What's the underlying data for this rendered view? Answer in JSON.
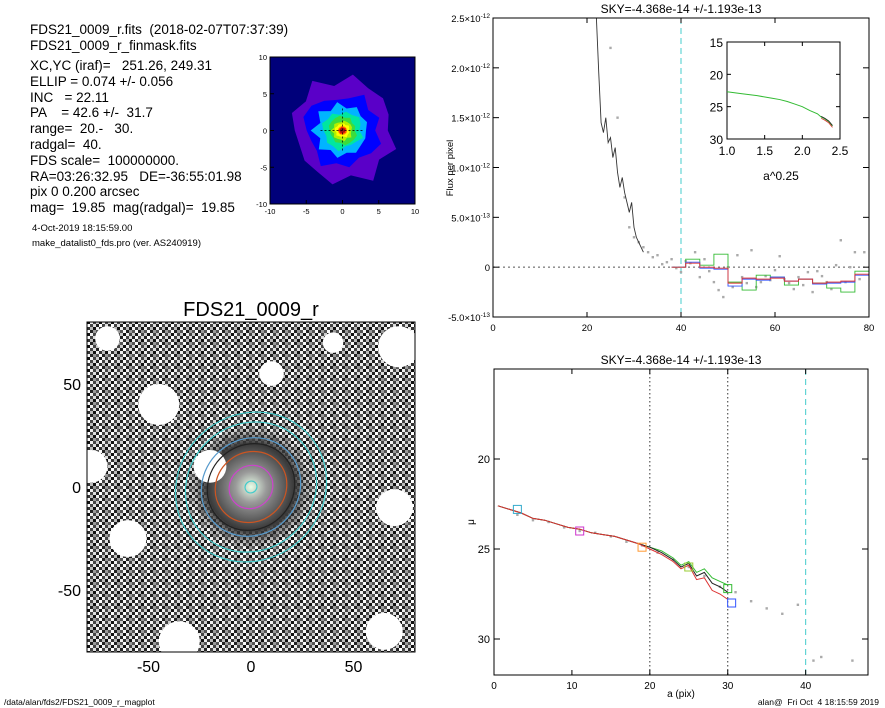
{
  "info": {
    "file_line": "FDS21_0009_r.fits  (2018-02-07T07:37:39)",
    "mask_line": "FDS21_0009_r_finmask.fits",
    "lines": [
      "XC,YC (iraf)=   251.26, 249.31",
      "ELLIP = 0.074 +/- 0.056",
      "INC   = 22.11",
      "PA    = 42.6 +/-  31.7",
      "range=  20.-   30.",
      "radgal=  40.",
      "FDS scale=  100000000.",
      "RA=03:26:32.95   DE=-36:55:01.98",
      "pix 0 0.200 arcsec",
      "mag=  19.85  mag(radgal)=  19.85"
    ],
    "date_line": "4-Oct-2019 18:15:59.00",
    "prog_line": "make_datalist0_fds.pro (ver. AS240919)"
  },
  "footer": {
    "left": "/data/alan/fds2/FDS21_0009_r_magplot",
    "right": "alan@  Fri Oct  4 18:15:59 2019"
  },
  "chart_data": [
    {
      "type": "heatmap",
      "title": "",
      "xlim": [
        -10,
        10
      ],
      "ylim": [
        -10,
        10
      ],
      "x_ticks": [
        "-10",
        "-5",
        "0",
        "5",
        "10"
      ],
      "y_ticks": [
        "10",
        "5",
        "0",
        "-5",
        "-10"
      ],
      "contour_colors": [
        "#00007a",
        "#5a00c8",
        "#0000ff",
        "#00b4ff",
        "#00e6a0",
        "#3cdc3c",
        "#b4f000",
        "#ffff00",
        "#ff9600",
        "#ff2800",
        "#a01414"
      ],
      "levels": [
        0,
        1,
        2,
        3,
        4,
        5,
        6,
        7,
        8,
        9,
        10
      ]
    },
    {
      "type": "line",
      "title": "SKY=-4.368e-14 +/-1.193e-13",
      "xlabel": "",
      "ylabel": "Flux per pixel",
      "xlim": [
        0,
        80
      ],
      "ylim": [
        -5e-13,
        2.5e-12
      ],
      "x_ticks": [
        "0",
        "20",
        "40",
        "60",
        "80"
      ],
      "y_ticks": [
        {
          "v": 2.5e-12,
          "m": "2.5",
          "e": "-12"
        },
        {
          "v": 2e-12,
          "m": "2.0",
          "e": "-12"
        },
        {
          "v": 1.5e-12,
          "m": "1.5",
          "e": "-12"
        },
        {
          "v": 1e-12,
          "m": "1.0",
          "e": "-12"
        },
        {
          "v": 5e-13,
          "m": "5.0",
          "e": "-13"
        },
        {
          "v": 0,
          "m": "0",
          "e": ""
        },
        {
          "v": -5e-13,
          "m": "-5.0",
          "e": "-13"
        }
      ],
      "vline_x": 40,
      "profile_x": [
        22,
        22.5,
        23,
        23.5,
        24,
        24.5,
        25,
        25.5,
        26,
        26.5,
        27,
        27.5,
        28,
        28.5,
        29,
        29.5,
        30,
        30.5,
        31,
        31.5,
        32
      ],
      "profile_y": [
        2.5e-12,
        1.95e-12,
        1.45e-12,
        1.35e-12,
        1.5e-12,
        1.25e-12,
        1.3e-12,
        1.1e-12,
        1.2e-12,
        9.5e-13,
        8e-13,
        9e-13,
        7.5e-13,
        6.5e-13,
        5.5e-13,
        6.5e-13,
        4e-13,
        3e-13,
        2.5e-13,
        2e-13,
        1.5e-13
      ],
      "scatter_x": [
        25,
        26.5,
        28,
        29,
        30,
        31,
        32,
        33,
        34,
        35,
        36,
        37,
        38,
        39,
        40,
        41,
        42,
        43,
        44,
        45,
        46,
        47,
        48,
        49,
        50,
        51,
        52,
        53,
        54,
        55,
        56,
        57,
        58,
        59,
        60,
        61,
        62,
        63,
        64,
        65,
        66,
        67,
        68,
        69,
        70,
        71,
        72,
        73,
        74,
        75,
        76,
        77,
        78,
        79
      ],
      "scatter_y": [
        2.2e-12,
        1.5e-12,
        7e-13,
        4e-13,
        3e-13,
        2.5e-13,
        2e-13,
        1.5e-13,
        1e-13,
        1.2e-13,
        3e-14,
        5e-14,
        8e-14,
        -1e-14,
        -5e-14,
        6e-14,
        4e-14,
        1.5e-13,
        -1e-13,
        8e-14,
        -4e-14,
        -1.5e-13,
        -2.3e-13,
        -3e-13,
        0,
        -2e-13,
        1.2e-13,
        -1e-13,
        -1.6e-13,
        1.7e-13,
        -2e-13,
        -1.5e-13,
        -9e-14,
        -1.3e-13,
        -3e-14,
        1.1e-13,
        -1.2e-13,
        -1.6e-13,
        -2.2e-13,
        -1e-13,
        -1.8e-13,
        -5e-14,
        -2.5e-13,
        -4e-14,
        -9e-14,
        -1.5e-13,
        -2.2e-13,
        2e-14,
        2.7e-13,
        -1.5e-13,
        0,
        1.5e-13,
        -1.2e-13,
        1.5e-13
      ],
      "steps": [
        {
          "name": "green",
          "color": "#33bb33",
          "x": [
            38,
            41,
            44,
            47,
            50,
            53,
            56,
            59,
            62,
            65,
            68,
            71,
            74,
            77,
            80
          ],
          "y": [
            0,
            8e-14,
            2e-14,
            1.3e-13,
            -1.5e-13,
            -2.3e-13,
            -8e-14,
            -1e-13,
            -1.8e-13,
            -1.2e-13,
            -1.6e-13,
            -2.1e-13,
            -2.5e-13,
            -4e-14,
            0
          ]
        },
        {
          "name": "blue",
          "color": "#3355ff",
          "x": [
            38,
            41,
            44,
            47,
            50,
            53,
            56,
            59,
            62,
            65,
            68,
            71,
            74,
            77,
            80
          ],
          "y": [
            0,
            5e-14,
            -1e-14,
            -2e-14,
            -1.9e-13,
            -1.2e-13,
            -1.3e-13,
            -1e-13,
            -1.4e-13,
            -1.2e-13,
            -1.7e-13,
            -1.6e-13,
            -1.5e-13,
            -8e-14,
            0
          ]
        },
        {
          "name": "red",
          "color": "#dd3333",
          "x": [
            38,
            41,
            44,
            47,
            50,
            53,
            56,
            59,
            62,
            65,
            68,
            71,
            74,
            77,
            80
          ],
          "y": [
            0,
            4e-14,
            0,
            -1e-14,
            -1.6e-13,
            -1.1e-13,
            -1.2e-13,
            -1.1e-13,
            -1.4e-13,
            -1.2e-13,
            -1.6e-13,
            -1.5e-13,
            -1.4e-13,
            -7e-14,
            0
          ]
        }
      ],
      "inset": {
        "xlabel": "a^0.25",
        "xlim": [
          1.0,
          2.5
        ],
        "ylim": [
          15,
          30
        ],
        "x_ticks": [
          "1.0",
          "1.5",
          "2.0",
          "2.5"
        ],
        "y_ticks": [
          "15",
          "20",
          "25",
          "30"
        ],
        "x": [
          1.0,
          1.2,
          1.4,
          1.6,
          1.7,
          1.8,
          1.9,
          2.0,
          2.1,
          2.2,
          2.25,
          2.3,
          2.35,
          2.4
        ],
        "y": [
          22.7,
          23.0,
          23.3,
          23.7,
          23.9,
          24.2,
          24.6,
          25.0,
          25.6,
          26.1,
          26.6,
          26.9,
          27.3,
          28.0
        ]
      }
    },
    {
      "type": "line",
      "title": "SKY=-4.368e-14 +/-1.193e-13",
      "xlabel": "a (pix)",
      "ylabel": "μ",
      "xlim": [
        0,
        48
      ],
      "ylim": [
        32,
        15
      ],
      "x_ticks": [
        "0",
        "10",
        "20",
        "30",
        "40"
      ],
      "y_ticks": [
        "20",
        "25",
        "30"
      ],
      "vlines_dotted": [
        20,
        30
      ],
      "vline_dashed": 40,
      "series": [
        {
          "name": "green",
          "color": "#33bb33",
          "x": [
            0.5,
            2,
            3.5,
            5,
            6.5,
            8,
            9.5,
            11,
            12.5,
            14,
            15.5,
            17,
            18.5,
            20,
            21.5,
            23,
            24,
            25,
            26,
            27,
            28,
            29,
            30
          ],
          "y": [
            22.6,
            22.8,
            23.0,
            23.3,
            23.4,
            23.6,
            23.8,
            23.9,
            24.1,
            24.2,
            24.3,
            24.5,
            24.7,
            24.9,
            25.1,
            25.5,
            25.9,
            25.7,
            26.3,
            26.1,
            26.6,
            26.8,
            27.0
          ]
        },
        {
          "name": "black",
          "color": "#222222",
          "x": [
            0.5,
            2,
            3.5,
            5,
            6.5,
            8,
            9.5,
            11,
            12.5,
            14,
            15.5,
            17,
            18.5,
            20,
            21.5,
            23,
            24,
            25,
            26,
            27,
            28,
            29,
            30
          ],
          "y": [
            22.6,
            22.8,
            23.0,
            23.3,
            23.4,
            23.6,
            23.8,
            23.9,
            24.1,
            24.2,
            24.3,
            24.5,
            24.7,
            24.9,
            25.2,
            25.6,
            26.0,
            25.8,
            26.5,
            26.3,
            26.9,
            27.1,
            27.4
          ]
        },
        {
          "name": "red",
          "color": "#dd3333",
          "x": [
            0.5,
            2,
            3.5,
            5,
            6.5,
            8,
            9.5,
            11,
            12.5,
            14,
            15.5,
            17,
            18.5,
            20,
            21.5,
            23,
            24,
            25,
            26,
            27,
            28,
            29,
            30
          ],
          "y": [
            22.6,
            22.8,
            23.0,
            23.3,
            23.4,
            23.6,
            23.8,
            23.9,
            24.1,
            24.2,
            24.3,
            24.5,
            24.7,
            25.0,
            25.3,
            25.7,
            26.1,
            25.9,
            26.7,
            26.6,
            27.3,
            27.5,
            27.8
          ]
        }
      ],
      "scatter_x": [
        3,
        5,
        7,
        9,
        11,
        13,
        15,
        17,
        19,
        21,
        23,
        25,
        27,
        29,
        31,
        33,
        35,
        37,
        39,
        41,
        42,
        46
      ],
      "scatter_y": [
        23.1,
        23.4,
        23.5,
        23.8,
        24.0,
        24.1,
        24.3,
        24.6,
        24.8,
        25.2,
        25.6,
        26.0,
        26.5,
        27.1,
        27.4,
        27.9,
        28.3,
        28.6,
        28.1,
        31.2,
        31.0,
        31.2
      ],
      "squares": [
        {
          "x": 3,
          "y": 22.8,
          "color": "#33aacc"
        },
        {
          "x": 11,
          "y": 24.0,
          "color": "#cc33cc"
        },
        {
          "x": 19,
          "y": 24.9,
          "color": "#ff9933"
        },
        {
          "x": 25,
          "y": 26.0,
          "color": "#99cc33"
        },
        {
          "x": 30,
          "y": 27.2,
          "color": "#33bb33"
        },
        {
          "x": 30.5,
          "y": 28.0,
          "color": "#3355ff"
        }
      ]
    },
    {
      "type": "scatter",
      "title": "FDS21_0009_r",
      "xlim": [
        -80,
        80
      ],
      "ylim": [
        -80,
        80
      ],
      "x_ticks": [
        "-50",
        "0",
        "50"
      ],
      "y_ticks": [
        "50",
        "0",
        "-50"
      ],
      "mask_holes": [
        [
          -45,
          40,
          10
        ],
        [
          72,
          68,
          10
        ],
        [
          -78,
          10,
          8
        ],
        [
          -60,
          -25,
          9
        ],
        [
          -35,
          -75,
          10
        ],
        [
          65,
          -70,
          9
        ],
        [
          70,
          -10,
          9
        ],
        [
          -20,
          10,
          8
        ],
        [
          -70,
          72,
          6
        ],
        [
          40,
          70,
          5
        ],
        [
          10,
          55,
          6
        ]
      ],
      "ellipses": [
        {
          "r": 38,
          "color": "#44cccc"
        },
        {
          "r": 33,
          "color": "#44cccc"
        },
        {
          "r": 25,
          "color": "#5599cc"
        },
        {
          "r": 22,
          "color": "#222222"
        },
        {
          "r": 18,
          "color": "#cc5522"
        },
        {
          "r": 11,
          "color": "#cc44cc"
        },
        {
          "r": 3,
          "color": "#44cccc"
        }
      ]
    }
  ]
}
